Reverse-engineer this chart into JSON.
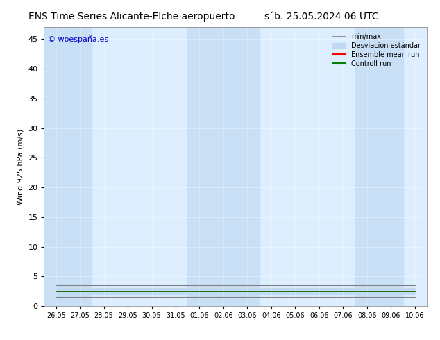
{
  "title": "ENS Time Series Alicante-Elche aeropuerto",
  "title2": "s´b. 25.05.2024 06 UTC",
  "ylabel": "Wind 925 hPa (m/s)",
  "watermark": "© woespaña.es",
  "ylim": [
    0,
    47
  ],
  "yticks": [
    0,
    5,
    10,
    15,
    20,
    25,
    30,
    35,
    40,
    45
  ],
  "x_labels": [
    "26.05",
    "27.05",
    "28.05",
    "29.05",
    "30.05",
    "31.05",
    "01.06",
    "02.06",
    "03.06",
    "04.06",
    "05.06",
    "06.06",
    "07.06",
    "08.06",
    "09.06",
    "10.06"
  ],
  "x_positions": [
    0,
    1,
    2,
    3,
    4,
    5,
    6,
    7,
    8,
    9,
    10,
    11,
    12,
    13,
    14,
    15
  ],
  "shade_positions": [
    0,
    1,
    6,
    7,
    8,
    13,
    14
  ],
  "background_color": "#ffffff",
  "plot_bg_color": "#ddeeff",
  "shade_color": "#c8dff5",
  "mean_color": "#ff0000",
  "control_color": "#008000",
  "minmax_color": "#808080",
  "std_color": "#c0d8f0",
  "legend_labels": [
    "min/max",
    "Desviación estándar",
    "Ensemble mean run",
    "Controll run"
  ],
  "n_points": 16,
  "mean_values": [
    2.5,
    2.5,
    2.5,
    2.5,
    2.5,
    2.5,
    2.5,
    2.5,
    2.5,
    2.5,
    2.5,
    2.5,
    2.5,
    2.5,
    2.5,
    2.5
  ],
  "control_values": [
    2.5,
    2.5,
    2.5,
    2.5,
    2.5,
    2.5,
    2.5,
    2.5,
    2.5,
    2.5,
    2.5,
    2.5,
    2.5,
    2.5,
    2.5,
    2.5
  ],
  "min_values": [
    1.5,
    1.5,
    1.5,
    1.5,
    1.5,
    1.5,
    1.5,
    1.5,
    1.5,
    1.5,
    1.5,
    1.5,
    1.5,
    1.5,
    1.5,
    1.5
  ],
  "max_values": [
    3.5,
    3.5,
    3.5,
    3.5,
    3.5,
    3.5,
    3.5,
    3.5,
    3.5,
    3.5,
    3.5,
    3.5,
    3.5,
    3.5,
    3.5,
    3.5
  ],
  "std_low": [
    2.0,
    2.0,
    2.0,
    2.0,
    2.0,
    2.0,
    2.0,
    2.0,
    2.0,
    2.0,
    2.0,
    2.0,
    2.0,
    2.0,
    2.0,
    2.0
  ],
  "std_high": [
    3.0,
    3.0,
    3.0,
    3.0,
    3.0,
    3.0,
    3.0,
    3.0,
    3.0,
    3.0,
    3.0,
    3.0,
    3.0,
    3.0,
    3.0,
    3.0
  ]
}
